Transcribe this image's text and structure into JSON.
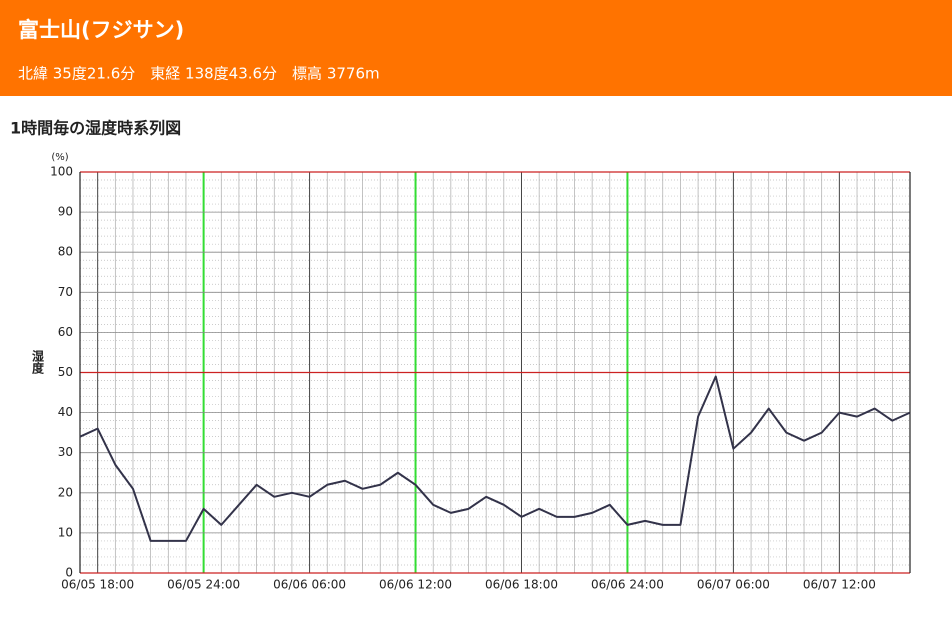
{
  "header": {
    "title": "富士山(フジサン)",
    "subtitle": "北緯 35度21.6分　東経 138度43.6分　標高 3776m"
  },
  "chart_data": {
    "type": "line",
    "title": "1時間毎の湿度時系列図",
    "y_unit": "(%)",
    "y_label": "湿度",
    "categories": [
      null,
      "06/05 18:00",
      null,
      null,
      null,
      null,
      null,
      "06/05 24:00",
      null,
      null,
      null,
      null,
      null,
      "06/06 06:00",
      null,
      null,
      null,
      null,
      null,
      "06/06 12:00",
      null,
      null,
      null,
      null,
      null,
      "06/06 18:00",
      null,
      null,
      null,
      null,
      null,
      "06/06 24:00",
      null,
      null,
      null,
      null,
      null,
      "06/07 06:00",
      null,
      null,
      null,
      null,
      null,
      "06/07 12:00",
      null,
      null,
      null,
      null
    ],
    "series": [
      {
        "name": "湿度",
        "color": "#33334a",
        "values": [
          34,
          36,
          27,
          21,
          8,
          8,
          8,
          16,
          12,
          17,
          22,
          19,
          20,
          19,
          22,
          23,
          21,
          22,
          25,
          22,
          17,
          15,
          16,
          19,
          17,
          14,
          16,
          14,
          14,
          15,
          17,
          12,
          13,
          12,
          12,
          39,
          49,
          31,
          35,
          41,
          35,
          33,
          35,
          40,
          39,
          41,
          38,
          40
        ]
      }
    ],
    "ylim": [
      0,
      100
    ],
    "yticks": [
      0,
      10,
      20,
      30,
      40,
      50,
      60,
      70,
      80,
      90,
      100
    ],
    "grid": true
  }
}
